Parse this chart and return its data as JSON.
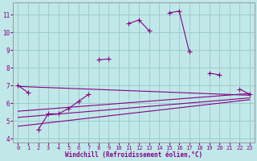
{
  "xlabel": "Windchill (Refroidissement éolien,°C)",
  "background_color": "#c0e8e8",
  "grid_color": "#a0cccc",
  "line_color": "#880088",
  "x_values": [
    0,
    1,
    2,
    3,
    4,
    5,
    6,
    7,
    8,
    9,
    10,
    11,
    12,
    13,
    14,
    15,
    16,
    17,
    18,
    19,
    20,
    21,
    22,
    23
  ],
  "ylim": [
    3.8,
    11.7
  ],
  "xlim": [
    -0.5,
    23.5
  ],
  "yticks": [
    4,
    5,
    6,
    7,
    8,
    9,
    10,
    11
  ],
  "xticks": [
    0,
    1,
    2,
    3,
    4,
    5,
    6,
    7,
    8,
    9,
    10,
    11,
    12,
    13,
    14,
    15,
    16,
    17,
    18,
    19,
    20,
    21,
    22,
    23
  ],
  "series_main": [
    7.0,
    6.6,
    null,
    null,
    null,
    null,
    null,
    null,
    8.45,
    8.5,
    null,
    10.5,
    10.7,
    10.1,
    null,
    11.1,
    11.2,
    8.9,
    null,
    7.7,
    7.6,
    null,
    6.8,
    6.5
  ],
  "series_low": [
    null,
    null,
    4.5,
    5.4,
    5.4,
    5.7,
    6.1,
    6.5,
    null,
    null,
    null,
    null,
    null,
    null,
    null,
    null,
    null,
    null,
    null,
    null,
    null,
    null,
    null,
    null
  ],
  "series_zigzag": [
    null,
    null,
    null,
    null,
    null,
    5.7,
    6.1,
    null,
    null,
    null,
    null,
    null,
    null,
    null,
    null,
    null,
    null,
    null,
    null,
    null,
    null,
    null,
    null,
    null
  ],
  "trend_lines": [
    {
      "x": [
        0,
        23
      ],
      "y": [
        6.95,
        6.45
      ]
    },
    {
      "x": [
        0,
        23
      ],
      "y": [
        5.55,
        6.55
      ]
    },
    {
      "x": [
        0,
        23
      ],
      "y": [
        5.2,
        6.3
      ]
    },
    {
      "x": [
        0,
        23
      ],
      "y": [
        4.7,
        6.2
      ]
    }
  ]
}
